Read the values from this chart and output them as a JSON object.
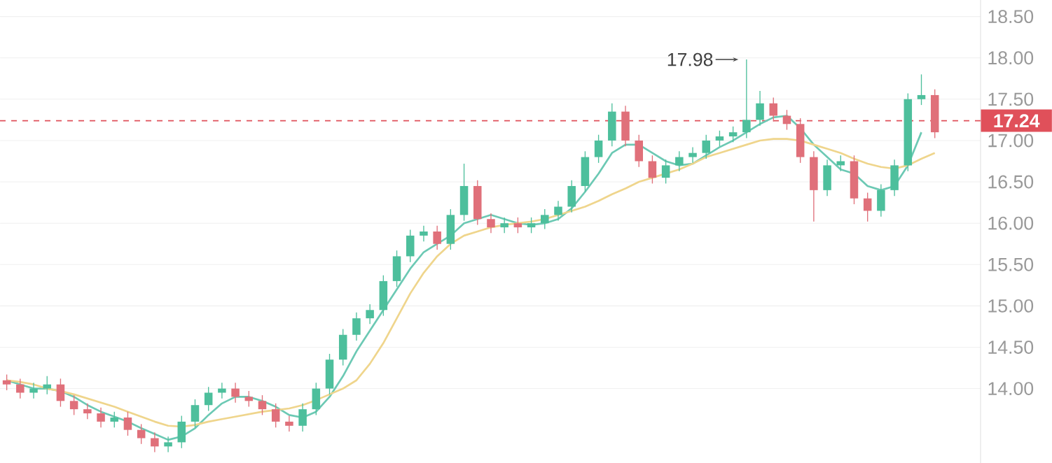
{
  "chart_data": {
    "type": "candlestick",
    "categories": [
      null,
      null,
      null,
      null,
      null,
      null,
      null,
      null,
      null,
      null,
      null,
      null,
      null,
      null,
      null,
      null,
      null,
      null,
      null,
      null,
      null,
      null,
      null,
      null,
      null,
      null,
      null,
      null,
      null,
      null,
      null,
      null,
      null,
      null,
      null,
      null,
      null,
      null,
      null,
      null,
      null,
      null,
      null,
      null,
      null,
      null,
      null,
      null,
      null,
      null,
      null,
      null,
      null,
      null,
      null,
      null,
      null,
      null,
      null,
      null,
      null,
      null,
      null,
      null,
      null,
      null,
      null,
      null,
      null,
      null
    ],
    "ohlc": [
      [
        14.1,
        14.17,
        13.98,
        14.05
      ],
      [
        14.05,
        14.12,
        13.88,
        13.95
      ],
      [
        13.95,
        14.07,
        13.88,
        14.0
      ],
      [
        14.0,
        14.15,
        13.93,
        14.05
      ],
      [
        14.05,
        14.12,
        13.78,
        13.85
      ],
      [
        13.85,
        13.92,
        13.68,
        13.75
      ],
      [
        13.75,
        13.82,
        13.63,
        13.7
      ],
      [
        13.7,
        13.77,
        13.53,
        13.6
      ],
      [
        13.6,
        13.72,
        13.53,
        13.65
      ],
      [
        13.65,
        13.72,
        13.43,
        13.5
      ],
      [
        13.5,
        13.57,
        13.33,
        13.4
      ],
      [
        13.4,
        13.47,
        13.23,
        13.3
      ],
      [
        13.3,
        13.42,
        13.23,
        13.35
      ],
      [
        13.35,
        13.67,
        13.28,
        13.6
      ],
      [
        13.6,
        13.87,
        13.53,
        13.8
      ],
      [
        13.8,
        14.02,
        13.73,
        13.95
      ],
      [
        13.95,
        14.07,
        13.88,
        14.0
      ],
      [
        14.0,
        14.07,
        13.83,
        13.9
      ],
      [
        13.9,
        13.97,
        13.78,
        13.85
      ],
      [
        13.85,
        13.92,
        13.68,
        13.75
      ],
      [
        13.75,
        13.82,
        13.53,
        13.6
      ],
      [
        13.6,
        13.67,
        13.48,
        13.55
      ],
      [
        13.55,
        13.82,
        13.48,
        13.75
      ],
      [
        13.75,
        14.07,
        13.68,
        14.0
      ],
      [
        14.0,
        14.42,
        13.93,
        14.35
      ],
      [
        14.35,
        14.72,
        14.28,
        14.65
      ],
      [
        14.65,
        14.92,
        14.58,
        14.85
      ],
      [
        14.85,
        15.02,
        14.78,
        14.95
      ],
      [
        14.95,
        15.37,
        14.88,
        15.3
      ],
      [
        15.3,
        15.67,
        15.23,
        15.6
      ],
      [
        15.6,
        15.92,
        15.53,
        15.85
      ],
      [
        15.85,
        15.97,
        15.78,
        15.9
      ],
      [
        15.9,
        15.97,
        15.68,
        15.75
      ],
      [
        15.75,
        16.17,
        15.68,
        16.1
      ],
      [
        16.1,
        16.72,
        16.03,
        16.45
      ],
      [
        16.45,
        16.52,
        15.98,
        16.05
      ],
      [
        16.05,
        16.12,
        15.88,
        15.95
      ],
      [
        15.95,
        16.07,
        15.88,
        16.0
      ],
      [
        16.0,
        16.07,
        15.88,
        15.95
      ],
      [
        15.95,
        16.07,
        15.88,
        16.0
      ],
      [
        16.0,
        16.17,
        15.93,
        16.1
      ],
      [
        16.1,
        16.27,
        16.03,
        16.2
      ],
      [
        16.2,
        16.52,
        16.13,
        16.45
      ],
      [
        16.45,
        16.87,
        16.38,
        16.8
      ],
      [
        16.8,
        17.07,
        16.73,
        17.0
      ],
      [
        17.0,
        17.45,
        16.93,
        17.35
      ],
      [
        17.35,
        17.42,
        16.93,
        17.0
      ],
      [
        17.0,
        17.07,
        16.68,
        16.75
      ],
      [
        16.75,
        16.82,
        16.48,
        16.55
      ],
      [
        16.55,
        16.77,
        16.48,
        16.7
      ],
      [
        16.7,
        16.87,
        16.63,
        16.8
      ],
      [
        16.8,
        16.92,
        16.73,
        16.85
      ],
      [
        16.85,
        17.07,
        16.78,
        17.0
      ],
      [
        17.0,
        17.12,
        16.93,
        17.05
      ],
      [
        17.05,
        17.17,
        16.98,
        17.1
      ],
      [
        17.1,
        17.98,
        17.03,
        17.25
      ],
      [
        17.25,
        17.6,
        17.18,
        17.45
      ],
      [
        17.45,
        17.52,
        17.23,
        17.3
      ],
      [
        17.3,
        17.37,
        17.13,
        17.2
      ],
      [
        17.2,
        17.27,
        16.73,
        16.8
      ],
      [
        16.8,
        16.87,
        16.02,
        16.4
      ],
      [
        16.4,
        16.77,
        16.33,
        16.7
      ],
      [
        16.7,
        16.82,
        16.63,
        16.75
      ],
      [
        16.75,
        16.82,
        16.23,
        16.3
      ],
      [
        16.3,
        16.37,
        16.02,
        16.15
      ],
      [
        16.15,
        16.47,
        16.08,
        16.4
      ],
      [
        16.4,
        16.77,
        16.33,
        16.7
      ],
      [
        16.7,
        17.57,
        16.63,
        17.5
      ],
      [
        17.5,
        17.8,
        17.43,
        17.55
      ],
      [
        17.55,
        17.62,
        17.03,
        17.1
      ]
    ],
    "colors": [
      "#e0707a",
      "#e0707a",
      "#4dbf9c",
      "#4dbf9c",
      "#e0707a",
      "#e0707a",
      "#e0707a",
      "#e0707a",
      "#4dbf9c",
      "#e0707a",
      "#e0707a",
      "#e0707a",
      "#4dbf9c",
      "#4dbf9c",
      "#4dbf9c",
      "#4dbf9c",
      "#4dbf9c",
      "#e0707a",
      "#e0707a",
      "#e0707a",
      "#e0707a",
      "#e0707a",
      "#4dbf9c",
      "#4dbf9c",
      "#4dbf9c",
      "#4dbf9c",
      "#4dbf9c",
      "#4dbf9c",
      "#4dbf9c",
      "#4dbf9c",
      "#4dbf9c",
      "#4dbf9c",
      "#e0707a",
      "#4dbf9c",
      "#4dbf9c",
      "#e0707a",
      "#e0707a",
      "#4dbf9c",
      "#e0707a",
      "#4dbf9c",
      "#4dbf9c",
      "#4dbf9c",
      "#4dbf9c",
      "#4dbf9c",
      "#4dbf9c",
      "#4dbf9c",
      "#e0707a",
      "#e0707a",
      "#e0707a",
      "#4dbf9c",
      "#4dbf9c",
      "#4dbf9c",
      "#4dbf9c",
      "#4dbf9c",
      "#4dbf9c",
      "#4dbf9c",
      "#4dbf9c",
      "#e0707a",
      "#e0707a",
      "#e0707a",
      "#e0707a",
      "#4dbf9c",
      "#4dbf9c",
      "#e0707a",
      "#e0707a",
      "#4dbf9c",
      "#4dbf9c",
      "#4dbf9c",
      "#4dbf9c",
      "#e0707a"
    ],
    "series": [
      {
        "type": "line",
        "color": "#6cc9b4",
        "values": [
          14.1,
          14.05,
          14.0,
          14.0,
          13.97,
          13.9,
          13.8,
          13.72,
          13.66,
          13.6,
          13.52,
          13.45,
          13.38,
          13.42,
          13.52,
          13.68,
          13.82,
          13.9,
          13.9,
          13.85,
          13.78,
          13.68,
          13.65,
          13.72,
          13.9,
          14.15,
          14.45,
          14.7,
          14.95,
          15.2,
          15.45,
          15.65,
          15.75,
          15.85,
          16.0,
          16.05,
          16.1,
          16.05,
          16.0,
          15.98,
          16.0,
          16.05,
          16.18,
          16.38,
          16.6,
          16.85,
          16.95,
          16.95,
          16.85,
          16.75,
          16.7,
          16.72,
          16.82,
          16.92,
          17.0,
          17.1,
          17.2,
          17.28,
          17.3,
          17.15,
          16.95,
          16.8,
          16.65,
          16.6,
          16.45,
          16.4,
          16.45,
          16.7,
          17.1,
          null
        ]
      },
      {
        "type": "line",
        "color": "#efd58c",
        "values": [
          14.1,
          14.08,
          14.05,
          14.0,
          13.97,
          13.93,
          13.88,
          13.83,
          13.78,
          13.72,
          13.66,
          13.6,
          13.55,
          13.54,
          13.56,
          13.6,
          13.63,
          13.66,
          13.69,
          13.72,
          13.74,
          13.76,
          13.8,
          13.86,
          13.93,
          14.0,
          14.1,
          14.3,
          14.55,
          14.85,
          15.15,
          15.4,
          15.6,
          15.75,
          15.85,
          15.9,
          15.95,
          15.98,
          16.0,
          16.02,
          16.05,
          16.1,
          16.15,
          16.2,
          16.27,
          16.35,
          16.42,
          16.5,
          16.55,
          16.6,
          16.65,
          16.72,
          16.8,
          16.85,
          16.9,
          16.95,
          17.0,
          17.02,
          17.02,
          17.0,
          16.95,
          16.9,
          16.85,
          16.78,
          16.72,
          16.68,
          16.66,
          16.7,
          16.78,
          16.85
        ]
      }
    ],
    "ylim": [
      13.1,
      18.7
    ],
    "yticks": [
      {
        "value": 14,
        "label": "14.00"
      },
      {
        "value": 14.5,
        "label": "14.50"
      },
      {
        "value": 15,
        "label": "15.00"
      },
      {
        "value": 15.5,
        "label": "15.50"
      },
      {
        "value": 16,
        "label": "16.00"
      },
      {
        "value": 16.5,
        "label": "16.50"
      },
      {
        "value": 17,
        "label": "17.00"
      },
      {
        "value": 17.5,
        "label": "17.50"
      },
      {
        "value": 18,
        "label": "18.00"
      },
      {
        "value": 18.5,
        "label": "18.50"
      }
    ],
    "tick_labels": "y",
    "grid": "y",
    "line_style": "solid",
    "ref_lines": [
      {
        "axis": "y",
        "value": 17.24,
        "label": "17.24",
        "color": "#e0505a",
        "line_style": "dashed"
      }
    ],
    "annotations": [
      "17.98"
    ]
  }
}
